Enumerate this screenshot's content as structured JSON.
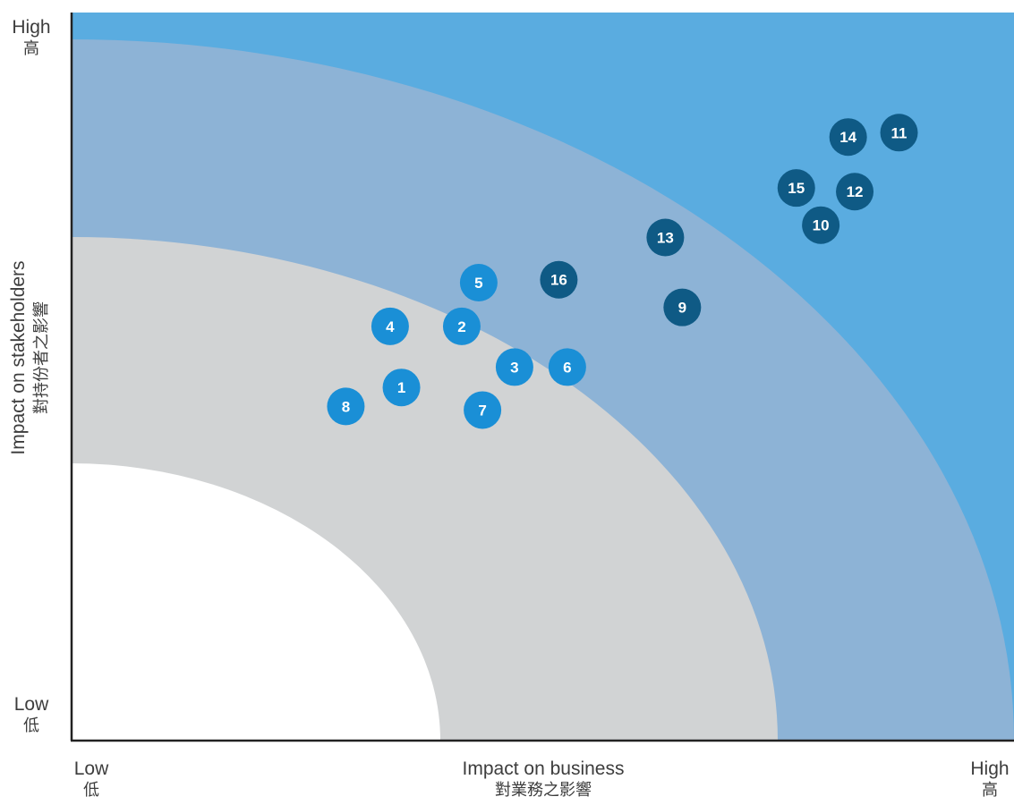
{
  "chart_data": {
    "type": "scatter",
    "xlabel": "Impact on business",
    "xlabel_zh": "對業務之影響",
    "ylabel": "Impact on stakeholders",
    "ylabel_zh": "對持份者之影響",
    "x_tick_labels": [
      {
        "en": "Low",
        "zh": "低"
      },
      {
        "en": "High",
        "zh": "高"
      }
    ],
    "y_tick_labels": [
      {
        "en": "High",
        "zh": "高"
      },
      {
        "en": "Low",
        "zh": "低"
      }
    ],
    "xlim": [
      0,
      100
    ],
    "ylim": [
      0,
      100
    ],
    "zones": [
      {
        "level": "low",
        "color": "#ffffff"
      },
      {
        "level": "medium",
        "color": "#d1d3d4"
      },
      {
        "level": "high",
        "color": "#8db3d6"
      },
      {
        "level": "very-high",
        "color": "#5aace0"
      }
    ],
    "points": [
      {
        "label": "1",
        "x": 35.0,
        "y": 48.5,
        "color": "#1a8fd6"
      },
      {
        "label": "2",
        "x": 41.4,
        "y": 56.9,
        "color": "#1a8fd6"
      },
      {
        "label": "3",
        "x": 47.0,
        "y": 51.3,
        "color": "#1a8fd6"
      },
      {
        "label": "4",
        "x": 33.8,
        "y": 56.9,
        "color": "#1a8fd6"
      },
      {
        "label": "5",
        "x": 43.2,
        "y": 62.9,
        "color": "#1a8fd6"
      },
      {
        "label": "6",
        "x": 52.6,
        "y": 51.3,
        "color": "#1a8fd6"
      },
      {
        "label": "7",
        "x": 43.6,
        "y": 45.4,
        "color": "#1a8fd6"
      },
      {
        "label": "8",
        "x": 29.1,
        "y": 45.9,
        "color": "#1a8fd6"
      },
      {
        "label": "9",
        "x": 64.8,
        "y": 59.5,
        "color": "#0f5a85"
      },
      {
        "label": "10",
        "x": 79.5,
        "y": 70.8,
        "color": "#0f5a85"
      },
      {
        "label": "11",
        "x": 87.8,
        "y": 83.5,
        "color": "#0f5a85"
      },
      {
        "label": "12",
        "x": 83.1,
        "y": 75.4,
        "color": "#0f5a85"
      },
      {
        "label": "13",
        "x": 63.0,
        "y": 69.1,
        "color": "#0f5a85"
      },
      {
        "label": "14",
        "x": 82.4,
        "y": 82.9,
        "color": "#0f5a85"
      },
      {
        "label": "15",
        "x": 76.9,
        "y": 75.9,
        "color": "#0f5a85"
      },
      {
        "label": "16",
        "x": 51.7,
        "y": 63.3,
        "color": "#0f5a85"
      }
    ]
  }
}
